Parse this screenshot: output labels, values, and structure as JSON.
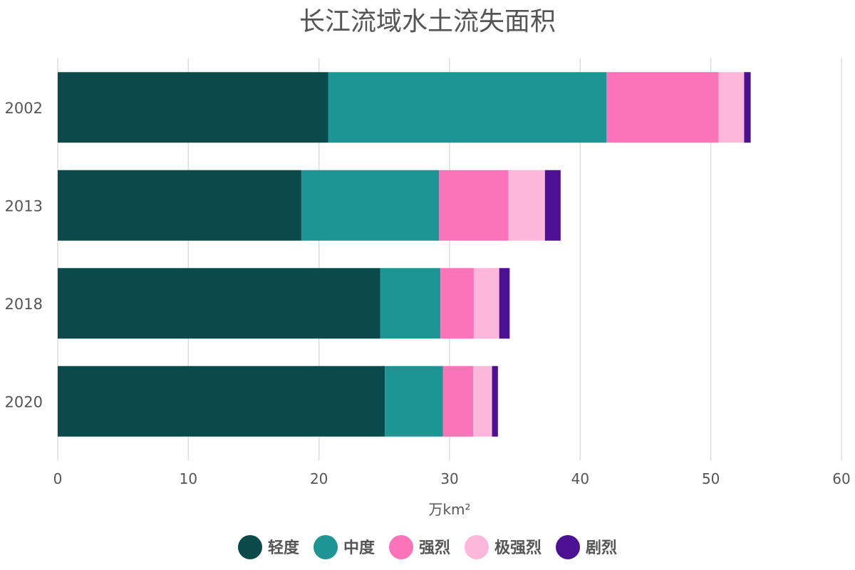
{
  "chart_data": {
    "type": "bar",
    "orientation": "horizontal",
    "stacked": true,
    "title": "长江流域水土流失面积",
    "xlabel": "万km²",
    "ylabel": "",
    "xlim": [
      0,
      60
    ],
    "x_ticks": [
      0,
      10,
      20,
      30,
      40,
      50,
      60
    ],
    "grid": true,
    "legend_position": "bottom",
    "categories": [
      "2002",
      "2013",
      "2018",
      "2020"
    ],
    "series": [
      {
        "name": "轻度",
        "color": "#0b4a4b",
        "values": [
          20.7,
          18.65,
          24.7,
          25.05
        ]
      },
      {
        "name": "中度",
        "color": "#1d9593",
        "values": [
          21.3,
          10.55,
          4.6,
          4.45
        ]
      },
      {
        "name": "强烈",
        "color": "#fb74b9",
        "values": [
          8.6,
          5.3,
          2.55,
          2.3
        ]
      },
      {
        "name": "极强烈",
        "color": "#fdb7da",
        "values": [
          1.95,
          2.8,
          1.95,
          1.45
        ]
      },
      {
        "name": "剧烈",
        "color": "#4c1192",
        "values": [
          0.5,
          1.2,
          0.8,
          0.45
        ]
      }
    ]
  }
}
